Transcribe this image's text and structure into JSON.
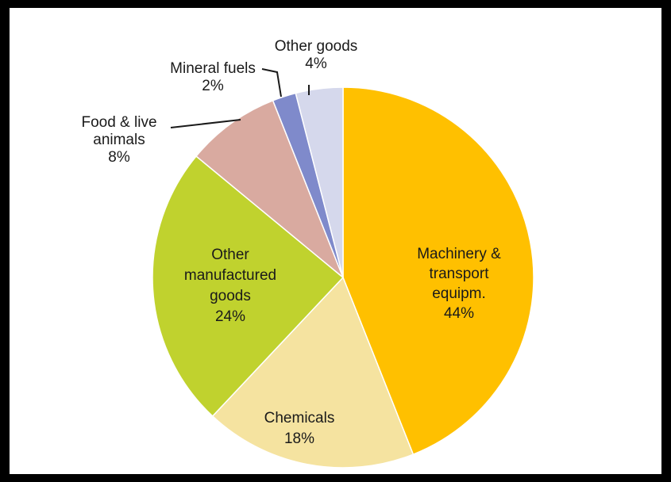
{
  "chart_data": {
    "type": "pie",
    "title": "",
    "slices": [
      {
        "label_lines": [
          "Machinery &",
          "transport",
          "equipm."
        ],
        "value": 44,
        "value_label": "44%",
        "color": "#FFC000"
      },
      {
        "label_lines": [
          "Chemicals"
        ],
        "value": 18,
        "value_label": "18%",
        "color": "#F5E3A0"
      },
      {
        "label_lines": [
          "Other",
          "manufactured",
          "goods"
        ],
        "value": 24,
        "value_label": "24%",
        "color": "#C0D22E"
      },
      {
        "label_lines": [
          "Food & live",
          "animals"
        ],
        "value": 8,
        "value_label": "8%",
        "color": "#D9AAA0"
      },
      {
        "label_lines": [
          "Mineral fuels"
        ],
        "value": 2,
        "value_label": "2%",
        "color": "#7F8ACB"
      },
      {
        "label_lines": [
          "Other goods"
        ],
        "value": 4,
        "value_label": "4%",
        "color": "#D5D8EC"
      }
    ]
  }
}
